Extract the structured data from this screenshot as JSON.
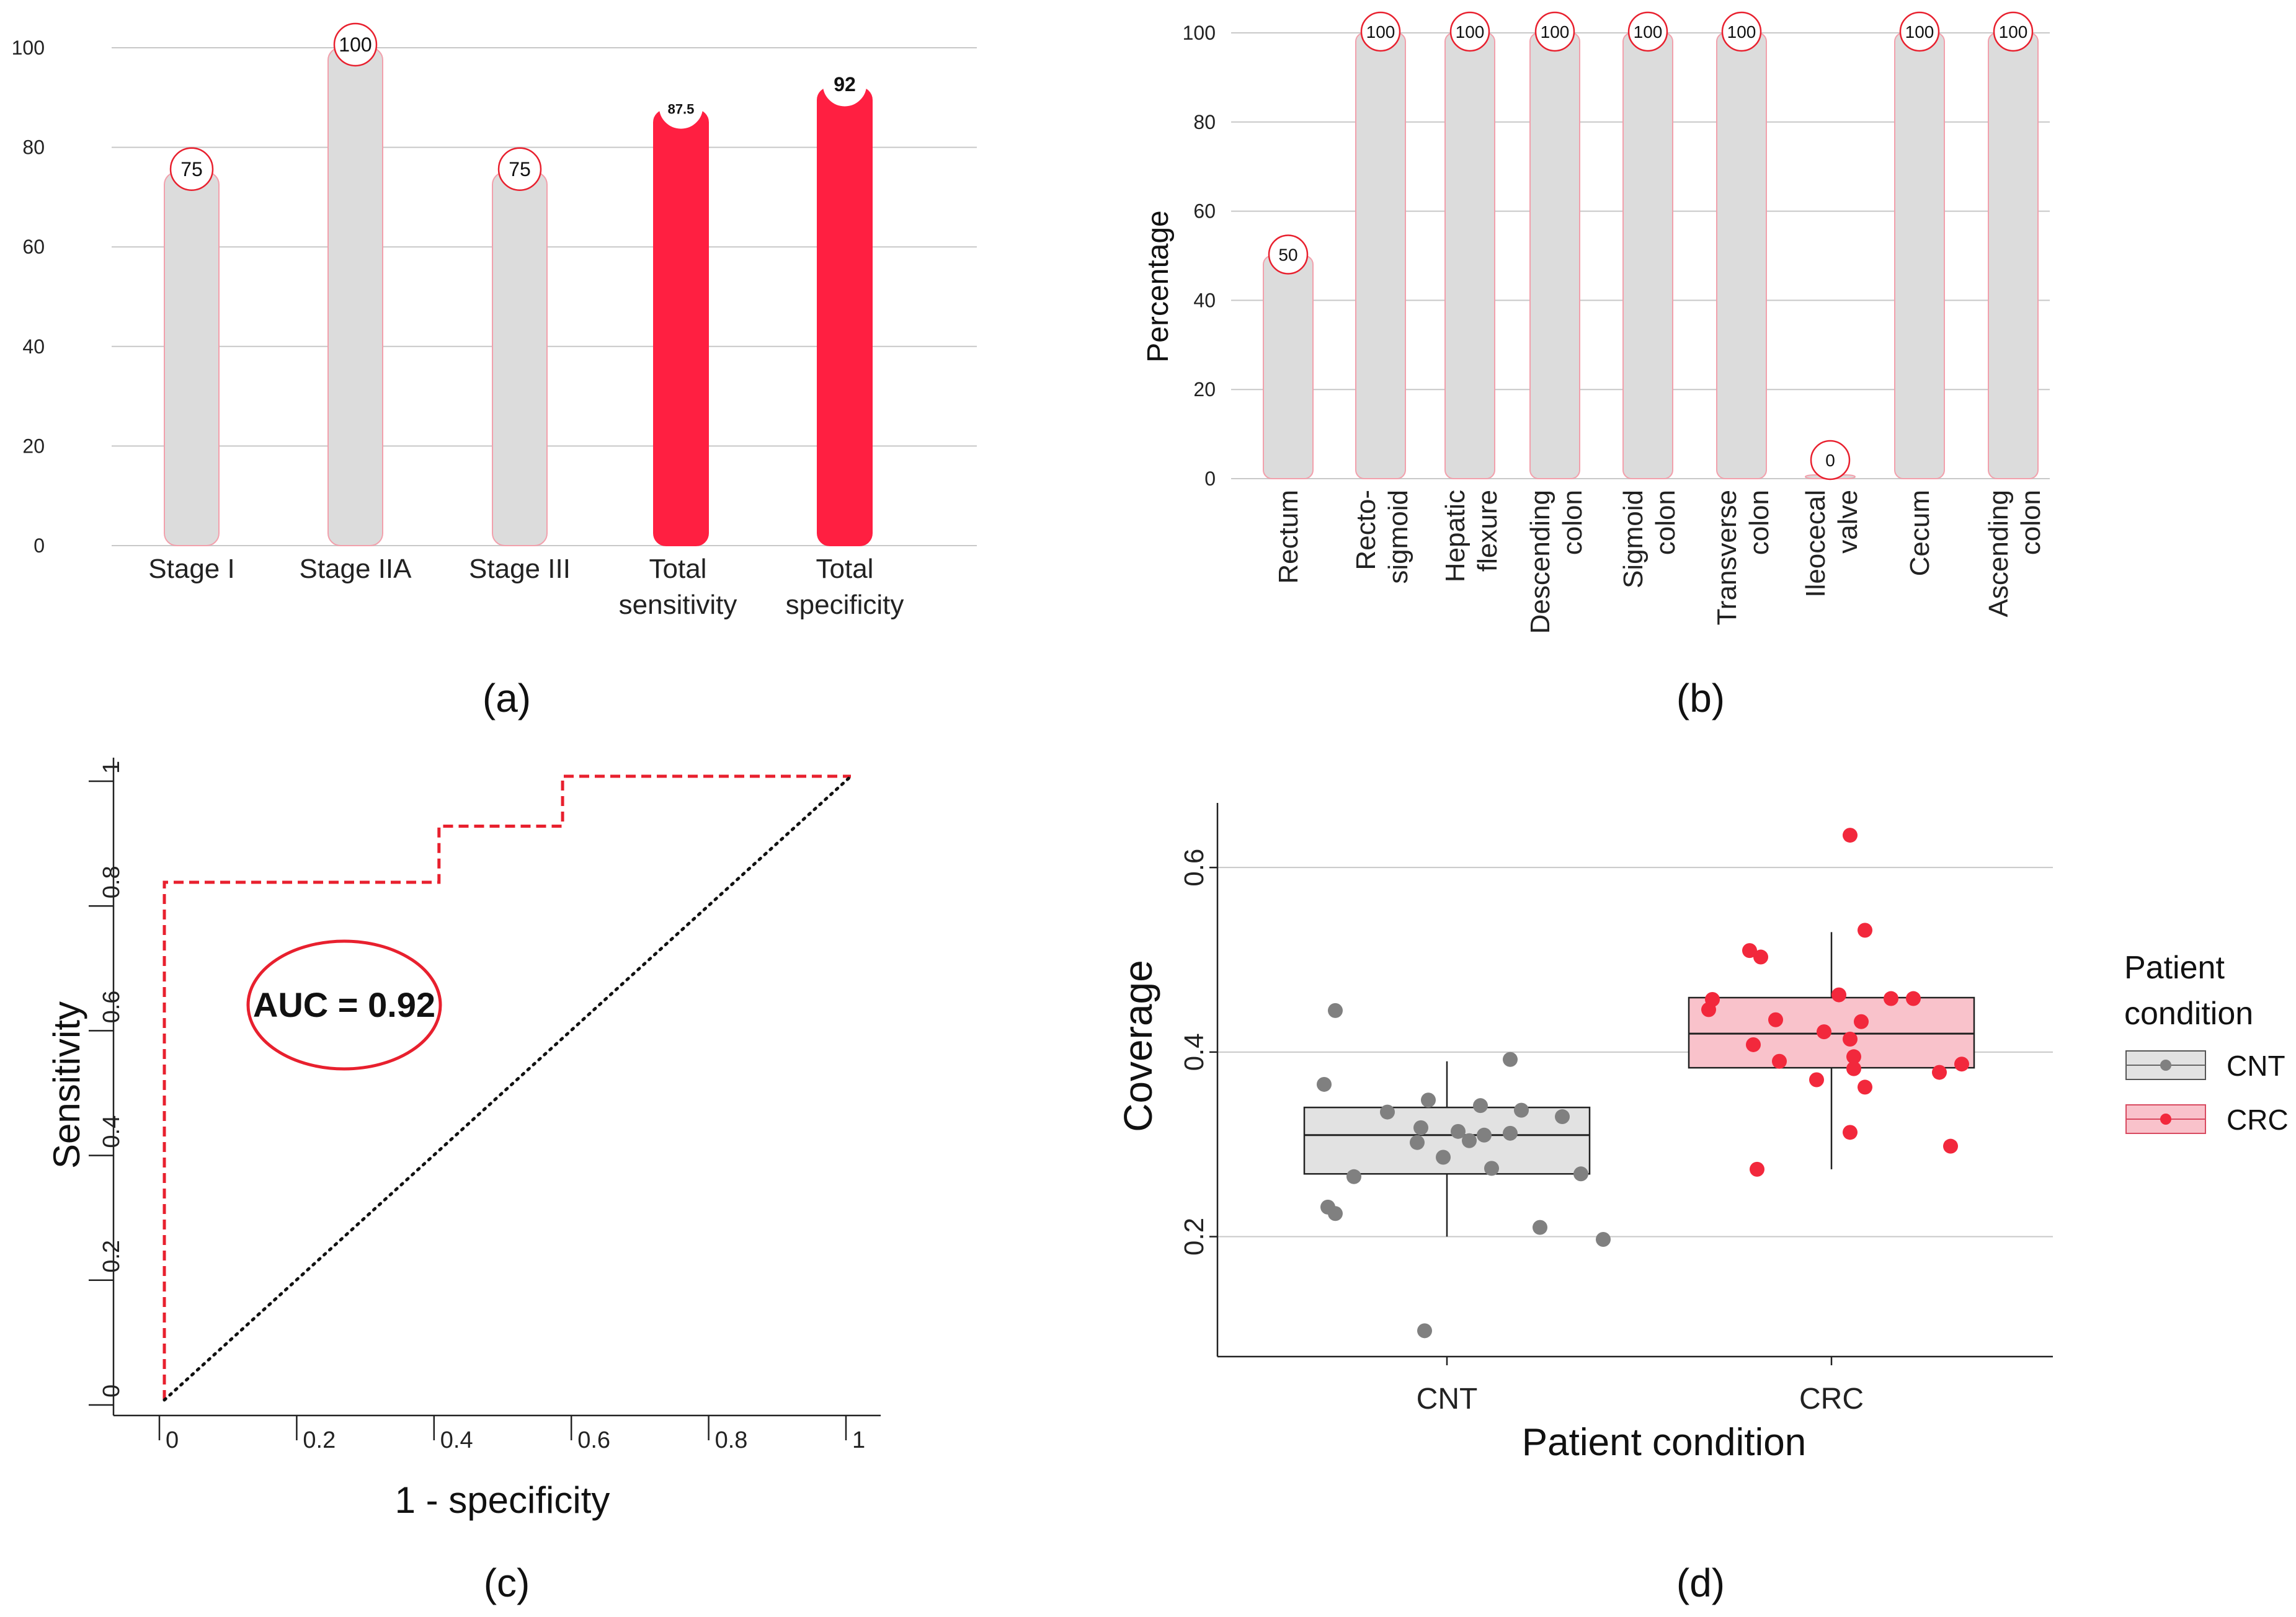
{
  "panel_labels": [
    "(a)",
    "(b)",
    "(c)",
    "(d)"
  ],
  "colors": {
    "grey_bar": "#dcdcdc",
    "red_bar": "#ff1f41",
    "bar_outline": "#f2a0ac",
    "roc_line": "#e8202e",
    "cnt_point": "#808080",
    "crc_point": "#f2283c",
    "cnt_box": "#e2e2e2",
    "crc_box": "#f9c2cb"
  },
  "chart_data": [
    {
      "id": "a",
      "type": "bar",
      "categories": [
        "Stage I",
        "Stage IIA",
        "Stage III",
        "Total sensitivity",
        "Total specificity"
      ],
      "category_lines": [
        [
          "Stage I"
        ],
        [
          "Stage IIA"
        ],
        [
          "Stage III"
        ],
        [
          "Total",
          "sensitivity"
        ],
        [
          "Total",
          "specificity"
        ]
      ],
      "values": [
        75,
        100,
        75,
        87.5,
        92
      ],
      "value_labels": [
        "75",
        "100",
        "75",
        "87.5",
        "92"
      ],
      "highlight": [
        false,
        false,
        false,
        true,
        true
      ],
      "ylim": [
        0,
        100
      ],
      "yticks": [
        0,
        20,
        40,
        60,
        80,
        100
      ],
      "xlabel": "",
      "ylabel": ""
    },
    {
      "id": "b",
      "type": "bar",
      "categories": [
        "Rectum",
        "Recto-sigmoid",
        "Hepatic flexure",
        "Descending colon",
        "Sigmoid colon",
        "Transverse colon",
        "Ileocecal valve",
        "Cecum",
        "Ascending colon"
      ],
      "category_lines": [
        [
          "Rectum"
        ],
        [
          "Recto-",
          "sigmoid"
        ],
        [
          "Hepatic",
          "flexure"
        ],
        [
          "Descending",
          "colon"
        ],
        [
          "Sigmoid",
          "colon"
        ],
        [
          "Transverse",
          "colon"
        ],
        [
          "Ileocecal",
          "valve"
        ],
        [
          "Cecum"
        ],
        [
          "Ascending",
          "colon"
        ]
      ],
      "values": [
        50,
        100,
        100,
        100,
        100,
        100,
        0,
        100,
        100
      ],
      "value_labels": [
        "50",
        "100",
        "100",
        "100",
        "100",
        "100",
        "0",
        "100",
        "100"
      ],
      "ylim": [
        0,
        100
      ],
      "yticks": [
        0,
        20,
        40,
        60,
        80,
        100
      ],
      "xlabel": "",
      "ylabel": "Percentage"
    },
    {
      "id": "c",
      "type": "line",
      "title": "",
      "xlabel": "1 - specificity",
      "ylabel": "Sensitivity",
      "xlim": [
        0,
        1
      ],
      "ylim": [
        0,
        1
      ],
      "xticks": [
        0,
        0.2,
        0.4,
        0.6,
        0.8,
        1
      ],
      "xtick_labels": [
        "0",
        "0.2",
        "0.4",
        "0.6",
        "0.8",
        "1"
      ],
      "yticks": [
        0,
        0.2,
        0.4,
        0.6,
        0.8,
        1
      ],
      "ytick_labels": [
        "0",
        "0.2",
        "0.4",
        "0.6",
        "0.8",
        "1"
      ],
      "series": [
        {
          "name": "ROC",
          "style": "dashed",
          "x": [
            0,
            0,
            0.4,
            0.4,
            0.58,
            0.58,
            1
          ],
          "y": [
            0,
            0.83,
            0.83,
            0.92,
            0.92,
            1,
            1
          ]
        },
        {
          "name": "Reference",
          "style": "dotted",
          "x": [
            0,
            1
          ],
          "y": [
            0,
            1
          ]
        }
      ],
      "annotation": "AUC = 0.92",
      "annotation_at": [
        0.26,
        0.64
      ]
    },
    {
      "id": "d",
      "type": "scatter",
      "subtype": "boxplot_with_jitter",
      "categories": [
        "CNT",
        "CRC"
      ],
      "xlabel": "Patient condition",
      "ylabel": "Coverage",
      "ylim": [
        0.07,
        0.67
      ],
      "yticks": [
        0.2,
        0.4,
        0.6
      ],
      "ytick_labels": [
        "0.2",
        "0.4",
        "0.6"
      ],
      "legend_title": "Patient condition",
      "legend_labels": [
        "CNT",
        "CRC"
      ],
      "legend_position": "right",
      "boxes": [
        {
          "name": "CNT",
          "min": 0.2,
          "q1": 0.268,
          "median": 0.31,
          "q3": 0.34,
          "max": 0.39
        },
        {
          "name": "CRC",
          "min": 0.273,
          "q1": 0.383,
          "median": 0.42,
          "q3": 0.459,
          "max": 0.53
        }
      ],
      "points": [
        {
          "group": "CNT",
          "jitter": -0.3,
          "y": 0.445
        },
        {
          "group": "CNT",
          "jitter": -0.33,
          "y": 0.365
        },
        {
          "group": "CNT",
          "jitter": -0.16,
          "y": 0.335
        },
        {
          "group": "CNT",
          "jitter": -0.05,
          "y": 0.348
        },
        {
          "group": "CNT",
          "jitter": 0.09,
          "y": 0.342
        },
        {
          "group": "CNT",
          "jitter": 0.2,
          "y": 0.337
        },
        {
          "group": "CNT",
          "jitter": 0.31,
          "y": 0.33
        },
        {
          "group": "CNT",
          "jitter": -0.07,
          "y": 0.318
        },
        {
          "group": "CNT",
          "jitter": 0.03,
          "y": 0.314
        },
        {
          "group": "CNT",
          "jitter": 0.1,
          "y": 0.31
        },
        {
          "group": "CNT",
          "jitter": 0.17,
          "y": 0.312
        },
        {
          "group": "CNT",
          "jitter": -0.08,
          "y": 0.302
        },
        {
          "group": "CNT",
          "jitter": 0.06,
          "y": 0.304
        },
        {
          "group": "CNT",
          "jitter": -0.01,
          "y": 0.286
        },
        {
          "group": "CNT",
          "jitter": 0.12,
          "y": 0.274
        },
        {
          "group": "CNT",
          "jitter": -0.25,
          "y": 0.265
        },
        {
          "group": "CNT",
          "jitter": 0.36,
          "y": 0.268
        },
        {
          "group": "CNT",
          "jitter": 0.17,
          "y": 0.392
        },
        {
          "group": "CNT",
          "jitter": -0.32,
          "y": 0.232
        },
        {
          "group": "CNT",
          "jitter": -0.3,
          "y": 0.225
        },
        {
          "group": "CNT",
          "jitter": 0.25,
          "y": 0.21
        },
        {
          "group": "CNT",
          "jitter": 0.42,
          "y": 0.197
        },
        {
          "group": "CNT",
          "jitter": -0.06,
          "y": 0.098
        },
        {
          "group": "CRC",
          "jitter": 0.05,
          "y": 0.635
        },
        {
          "group": "CRC",
          "jitter": -0.22,
          "y": 0.51
        },
        {
          "group": "CRC",
          "jitter": -0.19,
          "y": 0.503
        },
        {
          "group": "CRC",
          "jitter": 0.09,
          "y": 0.532
        },
        {
          "group": "CRC",
          "jitter": -0.32,
          "y": 0.457
        },
        {
          "group": "CRC",
          "jitter": -0.33,
          "y": 0.446
        },
        {
          "group": "CRC",
          "jitter": -0.15,
          "y": 0.435
        },
        {
          "group": "CRC",
          "jitter": 0.02,
          "y": 0.462
        },
        {
          "group": "CRC",
          "jitter": 0.16,
          "y": 0.458
        },
        {
          "group": "CRC",
          "jitter": 0.22,
          "y": 0.458
        },
        {
          "group": "CRC",
          "jitter": 0.08,
          "y": 0.433
        },
        {
          "group": "CRC",
          "jitter": -0.02,
          "y": 0.422
        },
        {
          "group": "CRC",
          "jitter": 0.05,
          "y": 0.414
        },
        {
          "group": "CRC",
          "jitter": -0.21,
          "y": 0.408
        },
        {
          "group": "CRC",
          "jitter": -0.14,
          "y": 0.39
        },
        {
          "group": "CRC",
          "jitter": 0.06,
          "y": 0.395
        },
        {
          "group": "CRC",
          "jitter": 0.06,
          "y": 0.382
        },
        {
          "group": "CRC",
          "jitter": -0.04,
          "y": 0.37
        },
        {
          "group": "CRC",
          "jitter": 0.09,
          "y": 0.362
        },
        {
          "group": "CRC",
          "jitter": 0.29,
          "y": 0.378
        },
        {
          "group": "CRC",
          "jitter": 0.35,
          "y": 0.387
        },
        {
          "group": "CRC",
          "jitter": 0.05,
          "y": 0.313
        },
        {
          "group": "CRC",
          "jitter": 0.32,
          "y": 0.298
        },
        {
          "group": "CRC",
          "jitter": -0.2,
          "y": 0.273
        }
      ]
    }
  ]
}
